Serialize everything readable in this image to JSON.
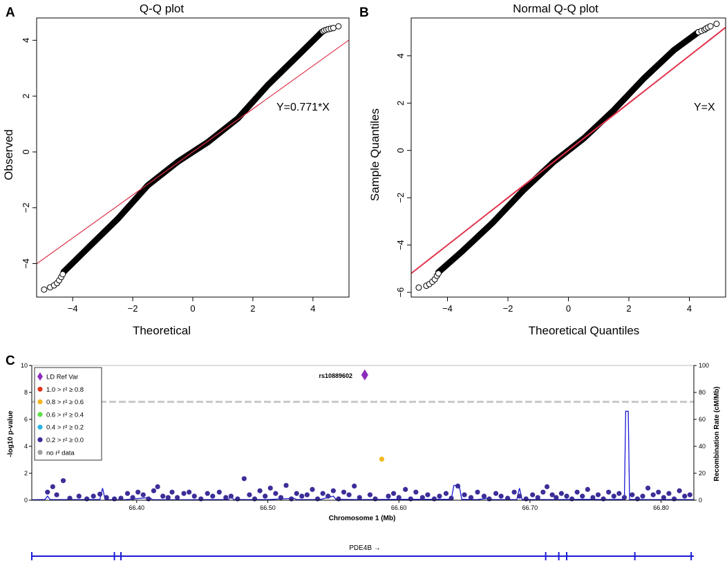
{
  "panel_labels": [
    "A",
    "B",
    "C"
  ],
  "colors": {
    "line_red": "#e0344c",
    "point_black": "#000000",
    "recomb_blue": "#1a1ad6",
    "snp_navy": "#3b2e98",
    "ld_purple": "#8a2dbb",
    "ld_red": "#e0341a",
    "ld_orange": "#f3b61f",
    "ld_green": "#5fe04a",
    "ld_cyan": "#2ab4e0",
    "ld_grey": "#a0a0a0",
    "threshold_grey": "#c8c8c8"
  },
  "chart_data": [
    {
      "id": "A",
      "type": "scatter",
      "title": "Q-Q plot",
      "xlabel": "Theoretical",
      "ylabel": "Observed",
      "xlim": [
        -5.2,
        5.2
      ],
      "ylim": [
        -5.2,
        4.8
      ],
      "xticks": [
        -4,
        -2,
        0,
        2,
        4
      ],
      "yticks": [
        -4,
        -2,
        0,
        2,
        4
      ],
      "xtick_labels": [
        "−4",
        "−2",
        "0",
        "2",
        "4"
      ],
      "ytick_labels": [
        "−4",
        "−2",
        "0",
        "2",
        "4"
      ],
      "reference_line": {
        "slope": 0.771,
        "intercept": 0,
        "label": "Y=0.771*X"
      },
      "curve": {
        "x": [
          -4.3,
          -3.5,
          -2.5,
          -1.5,
          -0.5,
          0,
          0.5,
          1.5,
          2.5,
          3.5,
          4.3
        ],
        "y": [
          -4.3,
          -3.45,
          -2.4,
          -1.2,
          -0.35,
          0,
          0.35,
          1.2,
          2.4,
          3.45,
          4.3
        ]
      },
      "tail_points_low": [
        [
          -4.95,
          -4.93
        ],
        [
          -4.75,
          -4.85
        ],
        [
          -4.62,
          -4.78
        ],
        [
          -4.52,
          -4.7
        ],
        [
          -4.45,
          -4.6
        ],
        [
          -4.38,
          -4.48
        ],
        [
          -4.33,
          -4.38
        ]
      ],
      "tail_points_high": [
        [
          4.33,
          4.32
        ],
        [
          4.38,
          4.35
        ],
        [
          4.45,
          4.38
        ],
        [
          4.52,
          4.4
        ],
        [
          4.6,
          4.42
        ],
        [
          4.68,
          4.44
        ],
        [
          4.85,
          4.5
        ]
      ]
    },
    {
      "id": "B",
      "type": "scatter",
      "title": "Normal Q-Q plot",
      "xlabel": "Theoretical Quantiles",
      "ylabel": "Sample Quantiles",
      "xlim": [
        -5.2,
        5.2
      ],
      "ylim": [
        -6.2,
        5.6
      ],
      "xticks": [
        -4,
        -2,
        0,
        2,
        4
      ],
      "yticks": [
        -6,
        -4,
        -2,
        0,
        2,
        4
      ],
      "xtick_labels": [
        "−4",
        "−2",
        "0",
        "2",
        "4"
      ],
      "ytick_labels": [
        "−6",
        "−4",
        "−2",
        "0",
        "2",
        "4"
      ],
      "reference_line": {
        "slope": 1.0,
        "intercept": 0,
        "label": "Y=X"
      },
      "curve": {
        "x": [
          -4.3,
          -3.5,
          -2.5,
          -1.5,
          -0.5,
          0,
          0.5,
          1.5,
          2.5,
          3.5,
          4.3
        ],
        "y": [
          -5.15,
          -4.25,
          -3.05,
          -1.7,
          -0.5,
          0,
          0.5,
          1.7,
          3.05,
          4.25,
          5.0
        ]
      },
      "tail_points_low": [
        [
          -4.95,
          -5.8
        ],
        [
          -4.7,
          -5.72
        ],
        [
          -4.6,
          -5.65
        ],
        [
          -4.5,
          -5.55
        ],
        [
          -4.42,
          -5.45
        ],
        [
          -4.35,
          -5.3
        ],
        [
          -4.3,
          -5.2
        ]
      ],
      "tail_points_high": [
        [
          4.3,
          5.0
        ],
        [
          4.4,
          5.05
        ],
        [
          4.5,
          5.1
        ],
        [
          4.55,
          5.15
        ],
        [
          4.62,
          5.2
        ],
        [
          4.7,
          5.25
        ],
        [
          4.9,
          5.35
        ]
      ]
    },
    {
      "id": "C",
      "type": "scatter",
      "title": "",
      "xlabel": "Chromosome 1 (Mb)",
      "ylabel": "-log10 p-value",
      "ylabel_right": "Recombination Rate (cM/Mb)",
      "xlim": [
        66.32,
        66.825
      ],
      "ylim": [
        0,
        10
      ],
      "ylim_right": [
        0,
        100
      ],
      "xticks": [
        66.4,
        66.5,
        66.6,
        66.7,
        66.8
      ],
      "xtick_labels": [
        "66.40",
        "66.50",
        "66.60",
        "66.70",
        "66.80"
      ],
      "yticks": [
        0,
        2,
        4,
        6,
        8,
        10
      ],
      "ytick_labels": [
        "0",
        "2",
        "4",
        "6",
        "8",
        "10"
      ],
      "yticks_right": [
        0,
        20,
        40,
        60,
        80,
        100
      ],
      "ytick_labels_right": [
        "0",
        "20",
        "40",
        "60",
        "80",
        "100"
      ],
      "threshold": 7.3,
      "lead_snp": {
        "name": "rs10889602",
        "x": 66.574,
        "y": 9.3
      },
      "orange_snp": {
        "x": 66.587,
        "y": 3.05
      },
      "legend": [
        {
          "label": "LD Ref Var",
          "color": "#8a2dbb",
          "shape": "diamond"
        },
        {
          "label": "1.0 > r² ≥ 0.8",
          "color": "#e0341a",
          "shape": "circle"
        },
        {
          "label": "0.8 > r² ≥ 0.6",
          "color": "#f3b61f",
          "shape": "circle"
        },
        {
          "label": "0.6 > r² ≥ 0.4",
          "color": "#5fe04a",
          "shape": "circle"
        },
        {
          "label": "0.4 > r² ≥ 0.2",
          "color": "#2ab4e0",
          "shape": "circle"
        },
        {
          "label": "0.2 > r² ≥ 0.0",
          "color": "#3b2e98",
          "shape": "circle"
        },
        {
          "label": "no r² data",
          "color": "#a0a0a0",
          "shape": "circle"
        }
      ],
      "snps": [
        [
          66.332,
          0.6
        ],
        [
          66.336,
          1.0
        ],
        [
          66.339,
          0.4
        ],
        [
          66.344,
          1.45
        ],
        [
          66.349,
          0.15
        ],
        [
          66.356,
          0.3
        ],
        [
          66.362,
          0.1
        ],
        [
          66.367,
          0.3
        ],
        [
          66.372,
          0.45
        ],
        [
          66.377,
          0.2
        ],
        [
          66.383,
          0.1
        ],
        [
          66.388,
          0.15
        ],
        [
          66.393,
          0.5
        ],
        [
          66.397,
          0.2
        ],
        [
          66.401,
          0.6
        ],
        [
          66.405,
          0.4
        ],
        [
          66.409,
          0.1
        ],
        [
          66.413,
          0.7
        ],
        [
          66.416,
          1.0
        ],
        [
          66.42,
          0.3
        ],
        [
          66.424,
          0.2
        ],
        [
          66.427,
          0.6
        ],
        [
          66.431,
          0.2
        ],
        [
          66.436,
          0.5
        ],
        [
          66.44,
          0.6
        ],
        [
          66.444,
          0.3
        ],
        [
          66.449,
          0.1
        ],
        [
          66.454,
          0.5
        ],
        [
          66.458,
          0.3
        ],
        [
          66.463,
          0.6
        ],
        [
          66.468,
          0.2
        ],
        [
          66.472,
          0.3
        ],
        [
          66.477,
          0.1
        ],
        [
          66.482,
          1.6
        ],
        [
          66.486,
          0.4
        ],
        [
          66.49,
          0.1
        ],
        [
          66.494,
          0.7
        ],
        [
          66.498,
          0.3
        ],
        [
          66.502,
          0.9
        ],
        [
          66.506,
          0.5
        ],
        [
          66.51,
          0.2
        ],
        [
          66.514,
          1.1
        ],
        [
          66.518,
          0.1
        ],
        [
          66.522,
          0.5
        ],
        [
          66.526,
          0.3
        ],
        [
          66.53,
          0.4
        ],
        [
          66.534,
          0.8
        ],
        [
          66.538,
          0.1
        ],
        [
          66.542,
          0.5
        ],
        [
          66.546,
          0.3
        ],
        [
          66.55,
          0.7
        ],
        [
          66.554,
          0.1
        ],
        [
          66.558,
          0.6
        ],
        [
          66.562,
          0.4
        ],
        [
          66.566,
          1.05
        ],
        [
          66.57,
          0.2
        ],
        [
          66.578,
          0.4
        ],
        [
          66.582,
          0.1
        ],
        [
          66.592,
          0.3
        ],
        [
          66.596,
          0.5
        ],
        [
          66.6,
          0.2
        ],
        [
          66.605,
          0.8
        ],
        [
          66.609,
          0.1
        ],
        [
          66.613,
          0.6
        ],
        [
          66.618,
          0.2
        ],
        [
          66.622,
          0.4
        ],
        [
          66.627,
          0.1
        ],
        [
          66.631,
          0.3
        ],
        [
          66.636,
          0.5
        ],
        [
          66.64,
          0.15
        ],
        [
          66.645,
          1.05
        ],
        [
          66.65,
          0.4
        ],
        [
          66.655,
          0.2
        ],
        [
          66.66,
          0.6
        ],
        [
          66.665,
          0.3
        ],
        [
          66.669,
          0.1
        ],
        [
          66.674,
          0.5
        ],
        [
          66.678,
          0.3
        ],
        [
          66.683,
          0.15
        ],
        [
          66.688,
          0.6
        ],
        [
          66.692,
          0.3
        ],
        [
          66.697,
          0.1
        ],
        [
          66.702,
          0.4
        ],
        [
          66.706,
          0.2
        ],
        [
          66.71,
          0.6
        ],
        [
          66.713,
          1.0
        ],
        [
          66.717,
          0.4
        ],
        [
          66.72,
          0.2
        ],
        [
          66.724,
          0.5
        ],
        [
          66.728,
          0.3
        ],
        [
          66.732,
          0.1
        ],
        [
          66.736,
          0.6
        ],
        [
          66.74,
          0.3
        ],
        [
          66.744,
          0.8
        ],
        [
          66.748,
          0.2
        ],
        [
          66.752,
          0.4
        ],
        [
          66.756,
          0.1
        ],
        [
          66.76,
          0.6
        ],
        [
          66.764,
          0.3
        ],
        [
          66.768,
          0.5
        ],
        [
          66.772,
          0.2
        ],
        [
          66.778,
          0.4
        ],
        [
          66.782,
          0.1
        ],
        [
          66.786,
          0.3
        ],
        [
          66.79,
          0.9
        ],
        [
          66.794,
          0.4
        ],
        [
          66.798,
          0.6
        ],
        [
          66.802,
          0.2
        ],
        [
          66.806,
          0.5
        ],
        [
          66.81,
          0.1
        ],
        [
          66.814,
          0.7
        ],
        [
          66.818,
          0.3
        ],
        [
          66.822,
          0.4
        ]
      ],
      "recombination": [
        [
          66.32,
          0.3
        ],
        [
          66.33,
          0.5
        ],
        [
          66.332,
          3
        ],
        [
          66.334,
          0.5
        ],
        [
          66.35,
          0.4
        ],
        [
          66.372,
          0.5
        ],
        [
          66.374,
          9
        ],
        [
          66.376,
          0.4
        ],
        [
          66.39,
          0.3
        ],
        [
          66.41,
          2
        ],
        [
          66.412,
          0.4
        ],
        [
          66.43,
          0.3
        ],
        [
          66.47,
          0.5
        ],
        [
          66.472,
          3
        ],
        [
          66.474,
          0.5
        ],
        [
          66.5,
          0.4
        ],
        [
          66.52,
          1.5
        ],
        [
          66.522,
          0.4
        ],
        [
          66.54,
          0.5
        ],
        [
          66.55,
          3
        ],
        [
          66.552,
          0.6
        ],
        [
          66.57,
          0.4
        ],
        [
          66.6,
          0.6
        ],
        [
          66.64,
          0.6
        ],
        [
          66.642,
          11
        ],
        [
          66.646,
          11
        ],
        [
          66.648,
          0.6
        ],
        [
          66.66,
          0.4
        ],
        [
          66.668,
          1.5
        ],
        [
          66.67,
          0.4
        ],
        [
          66.69,
          0.5
        ],
        [
          66.692,
          9
        ],
        [
          66.694,
          0.5
        ],
        [
          66.72,
          0.4
        ],
        [
          66.74,
          0.6
        ],
        [
          66.76,
          0.5
        ],
        [
          66.772,
          0.6
        ],
        [
          66.773,
          66
        ],
        [
          66.775,
          66
        ],
        [
          66.776,
          0.6
        ],
        [
          66.79,
          0.4
        ],
        [
          66.81,
          0.5
        ],
        [
          66.825,
          0.4
        ]
      ],
      "gene": {
        "name": "PDE4B →",
        "start": 66.32,
        "end": 66.825,
        "exons": [
          66.383,
          66.388,
          66.712,
          66.722,
          66.728,
          66.78,
          66.823
        ]
      }
    }
  ]
}
